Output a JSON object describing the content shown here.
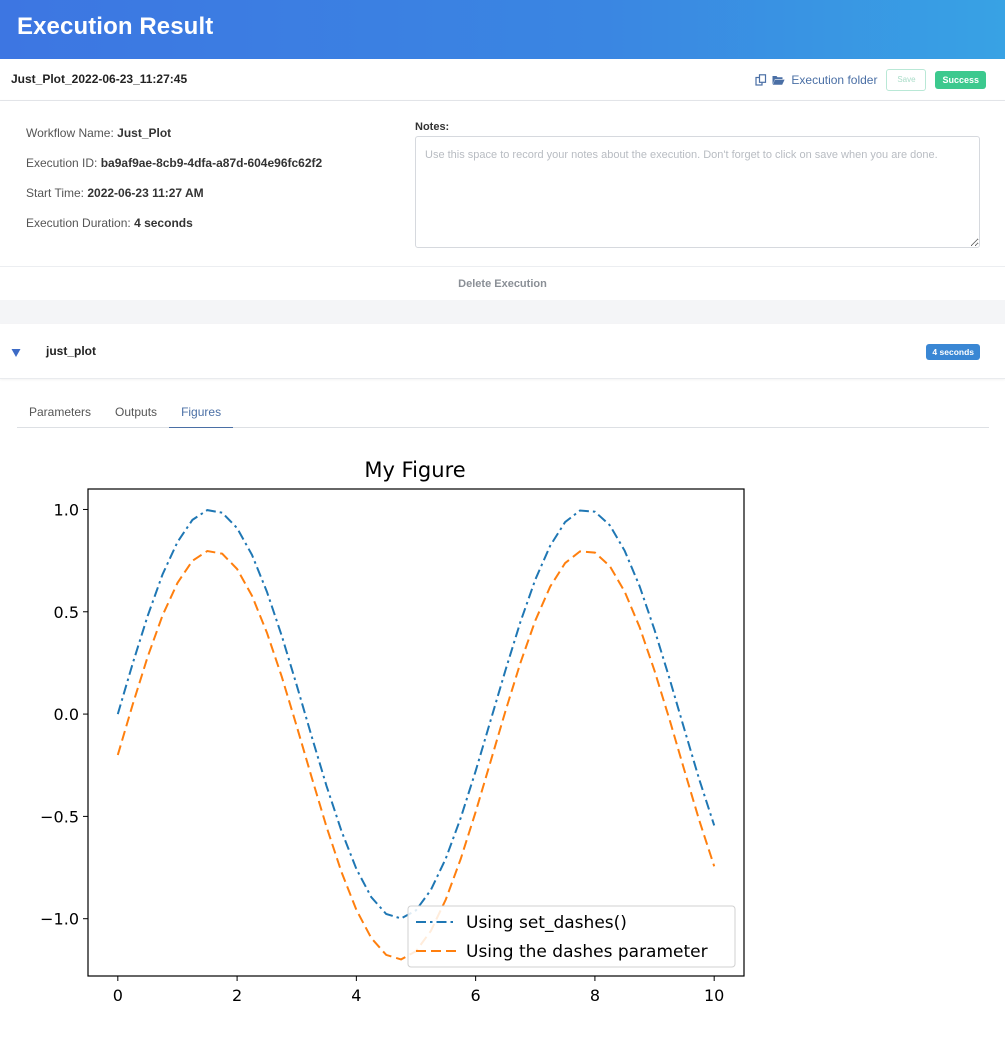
{
  "app": {
    "title": "Execution Result"
  },
  "execution": {
    "name": "Just_Plot_2022-06-23_11:27:45",
    "folder_label": "Execution folder",
    "save_label": "Save",
    "status": "Success",
    "workflow_name_label": "Workflow Name:",
    "workflow_name": "Just_Plot",
    "id_label": "Execution ID:",
    "id": "ba9af9ae-8cb9-4dfa-a87d-604e96fc62f2",
    "start_label": "Start Time:",
    "start_time": "2022-06-23 11:27 AM",
    "duration_label": "Execution Duration:",
    "duration": "4 seconds",
    "notes_label": "Notes:",
    "notes_placeholder": "Use this space to record your notes about the execution. Don't forget to click on save when you are done.",
    "delete_label": "Delete Execution"
  },
  "step": {
    "name": "just_plot",
    "duration": "4 seconds"
  },
  "tabs": [
    {
      "label": "Parameters",
      "active": false
    },
    {
      "label": "Outputs",
      "active": false
    },
    {
      "label": "Figures",
      "active": true
    }
  ],
  "colors": {
    "series1": "#1f77b4",
    "series2": "#ff7f0e",
    "accent": "#4a6fa5",
    "success": "#3cc98e"
  },
  "icons": {
    "copy": "copy-icon",
    "folder": "folder-open-icon",
    "caret": "caret-down-icon"
  },
  "chart_data": {
    "type": "line",
    "title": "My Figure",
    "xlabel": "",
    "ylabel": "",
    "xlim": [
      -0.5,
      10.5
    ],
    "ylim": [
      -1.28,
      1.1
    ],
    "xticks": [
      0,
      2,
      4,
      6,
      8,
      10
    ],
    "yticks": [
      -1.0,
      -0.5,
      0.0,
      0.5,
      1.0
    ],
    "ytick_labels": [
      "−1.0",
      "−0.5",
      "0.0",
      "0.5",
      "1.0"
    ],
    "grid": false,
    "legend_position": "lower-right",
    "series": [
      {
        "name": "Using set_dashes()",
        "style": "dashdot",
        "x": [
          0,
          0.25,
          0.5,
          0.75,
          1,
          1.25,
          1.5,
          1.75,
          2,
          2.25,
          2.5,
          2.75,
          3,
          3.25,
          3.5,
          3.75,
          4,
          4.25,
          4.5,
          4.75,
          5,
          5.25,
          5.5,
          5.75,
          6,
          6.25,
          6.5,
          6.75,
          7,
          7.25,
          7.5,
          7.75,
          8,
          8.25,
          8.5,
          8.75,
          9,
          9.25,
          9.5,
          9.75,
          10
        ],
        "y": [
          0,
          0.247,
          0.479,
          0.682,
          0.841,
          0.949,
          0.997,
          0.984,
          0.909,
          0.778,
          0.598,
          0.382,
          0.141,
          -0.108,
          -0.351,
          -0.572,
          -0.757,
          -0.895,
          -0.977,
          -0.999,
          -0.959,
          -0.859,
          -0.706,
          -0.508,
          -0.279,
          -0.033,
          0.215,
          0.45,
          0.657,
          0.823,
          0.938,
          0.995,
          0.989,
          0.923,
          0.798,
          0.625,
          0.412,
          0.174,
          -0.075,
          -0.32,
          -0.544
        ]
      },
      {
        "name": "Using the dashes parameter",
        "style": "dashed",
        "x": [
          0,
          0.25,
          0.5,
          0.75,
          1,
          1.25,
          1.5,
          1.75,
          2,
          2.25,
          2.5,
          2.75,
          3,
          3.25,
          3.5,
          3.75,
          4,
          4.25,
          4.5,
          4.75,
          5,
          5.25,
          5.5,
          5.75,
          6,
          6.25,
          6.5,
          6.75,
          7,
          7.25,
          7.5,
          7.75,
          8,
          8.25,
          8.5,
          8.75,
          9,
          9.25,
          9.5,
          9.75,
          10
        ],
        "y": [
          -0.2,
          0.047,
          0.279,
          0.482,
          0.641,
          0.749,
          0.797,
          0.784,
          0.709,
          0.578,
          0.398,
          0.182,
          -0.059,
          -0.308,
          -0.551,
          -0.772,
          -0.957,
          -1.095,
          -1.177,
          -1.199,
          -1.159,
          -1.059,
          -0.906,
          -0.708,
          -0.479,
          -0.233,
          0.015,
          0.25,
          0.457,
          0.623,
          0.738,
          0.795,
          0.789,
          0.723,
          0.598,
          0.425,
          0.212,
          -0.026,
          -0.275,
          -0.52,
          -0.744
        ]
      }
    ]
  }
}
